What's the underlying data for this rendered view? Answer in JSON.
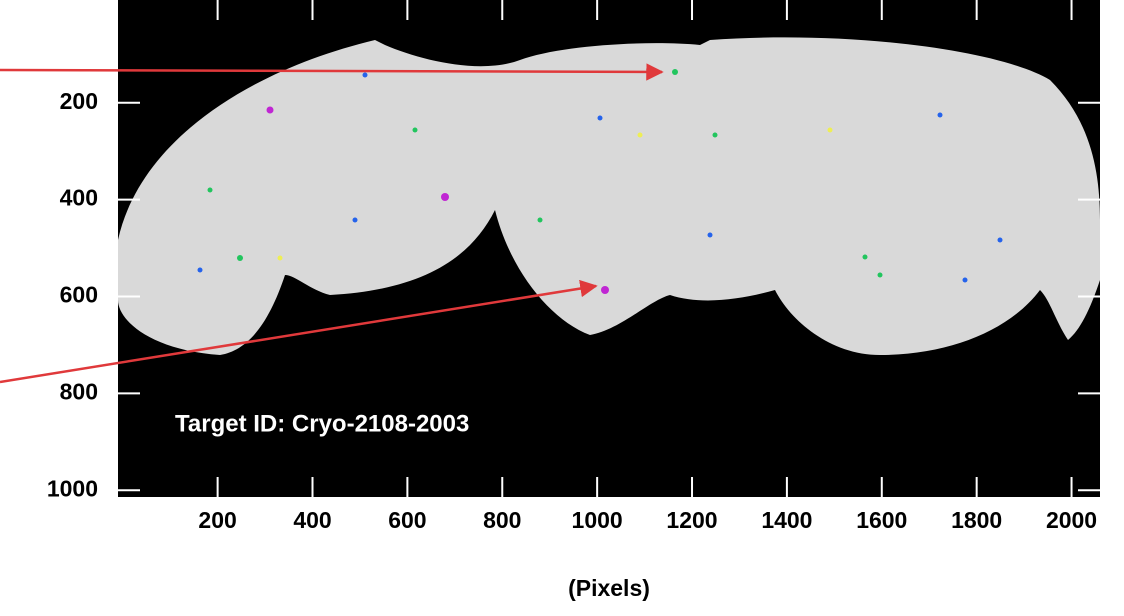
{
  "chart_data": {
    "type": "image",
    "annotation": "Target ID: Cryo-2108-2003",
    "xlabel": "(Pixels)",
    "xlim": [
      -10,
      2060
    ],
    "ylim": [
      -12,
      1014
    ],
    "xticks": [
      200,
      400,
      600,
      800,
      1000,
      1200,
      1400,
      1600,
      1800,
      2000
    ],
    "yticks": [
      200,
      400,
      600,
      800,
      1000
    ]
  }
}
